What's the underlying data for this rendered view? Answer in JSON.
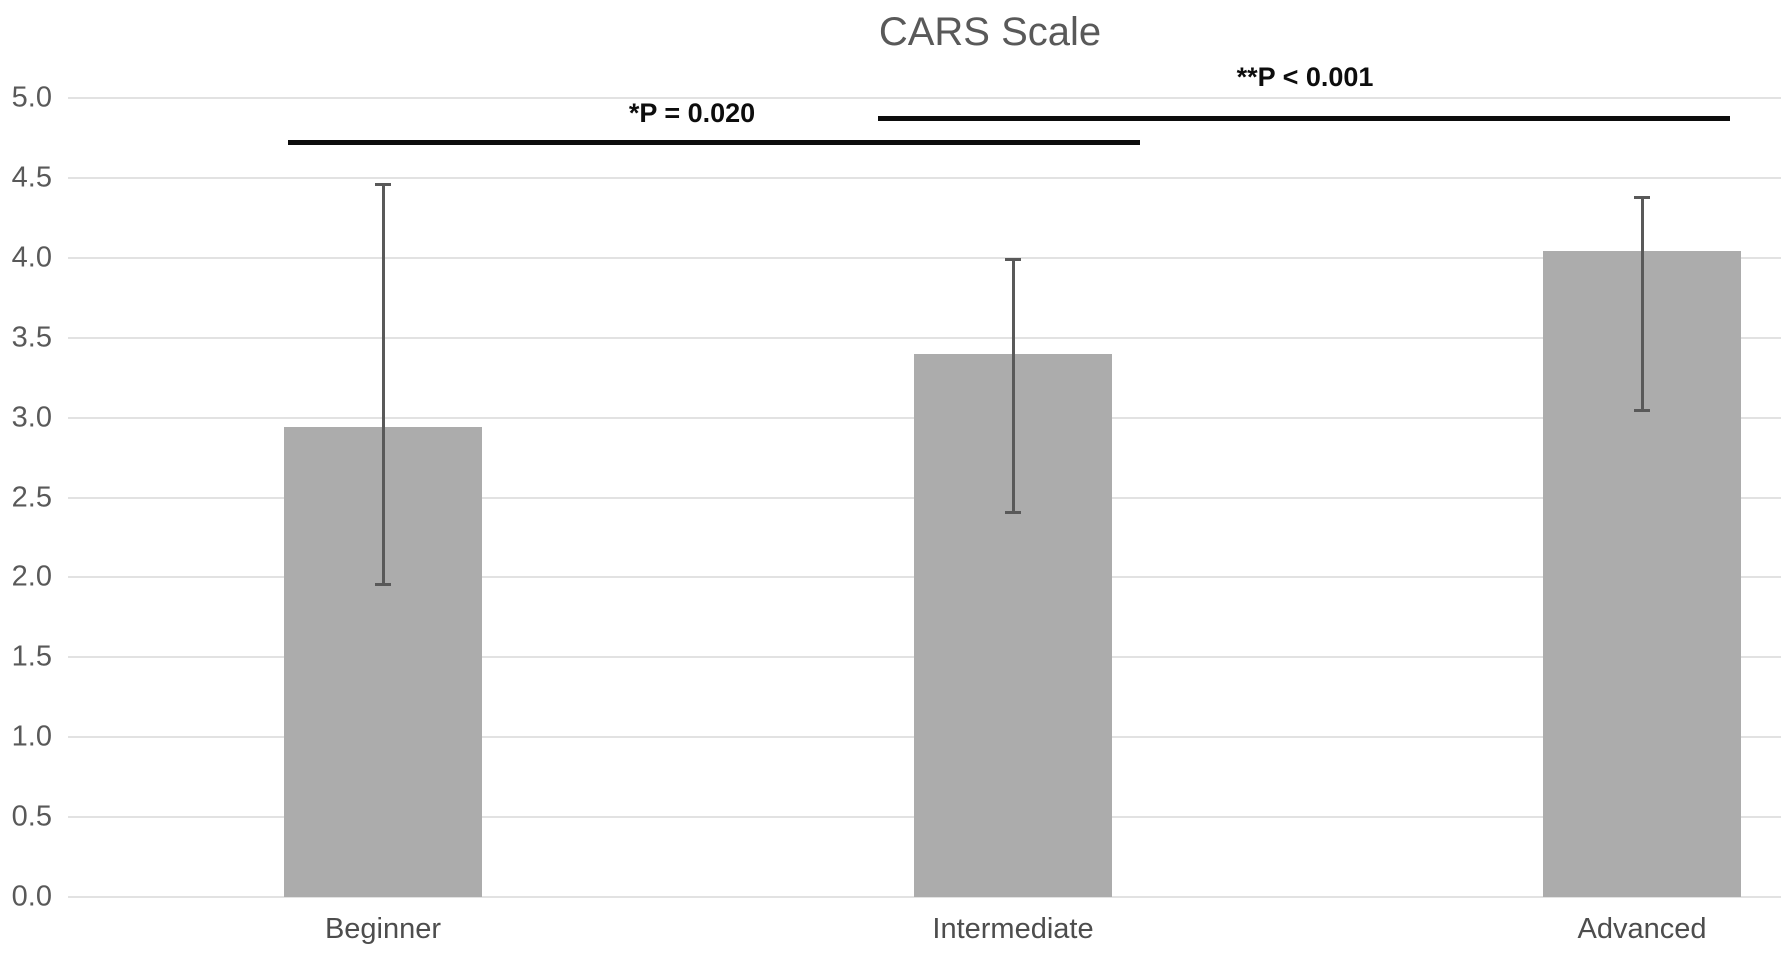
{
  "chart_data": {
    "type": "bar",
    "title": "CARS Scale",
    "categories": [
      "Beginner",
      "Intermediate",
      "Advanced"
    ],
    "values": [
      2.94,
      3.4,
      4.04
    ],
    "error_bars": {
      "upper": [
        4.46,
        3.99,
        4.38
      ],
      "lower": [
        1.95,
        2.4,
        3.04
      ]
    },
    "ylim": [
      0.0,
      5.0
    ],
    "ytick_step": 0.5,
    "ytick_labels": [
      "0.0",
      "0.5",
      "1.0",
      "1.5",
      "2.0",
      "2.5",
      "3.0",
      "3.5",
      "4.0",
      "4.5",
      "5.0"
    ],
    "xlabel": "",
    "ylabel": "",
    "grid": "horizontal",
    "legend": "none",
    "background_color": "#ffffff",
    "bar_color": "#acacac",
    "error_bar_color": "#595959",
    "gridline_color": "#e2e2e2",
    "title_color": "#595959",
    "annotation_color": "#0d0d0d",
    "annotations": [
      {
        "label": "*P = 0.020",
        "between": [
          "Beginner",
          "Intermediate"
        ]
      },
      {
        "label": "**P < 0.001",
        "between": [
          "Intermediate",
          "Advanced"
        ]
      }
    ]
  }
}
